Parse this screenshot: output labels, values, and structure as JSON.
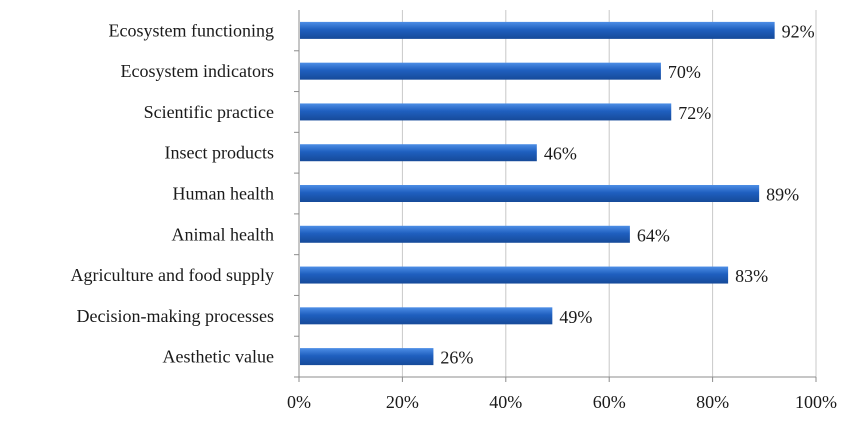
{
  "chart_data": {
    "type": "bar",
    "orientation": "horizontal",
    "categories": [
      "Ecosystem functioning",
      "Ecosystem indicators",
      "Scientific practice",
      "Insect products",
      "Human health",
      "Animal health",
      "Agriculture and food supply",
      "Decision-making processes",
      "Aesthetic value"
    ],
    "values": [
      92,
      70,
      72,
      46,
      89,
      64,
      83,
      49,
      26
    ],
    "value_labels": [
      "92%",
      "70%",
      "72%",
      "46%",
      "89%",
      "64%",
      "83%",
      "49%",
      "26%"
    ],
    "xlim": [
      0,
      100
    ],
    "x_ticks": [
      0,
      20,
      40,
      60,
      80,
      100
    ],
    "x_tick_labels": [
      "0%",
      "20%",
      "40%",
      "60%",
      "80%",
      "100%"
    ],
    "grid": "vertical",
    "legend": "none",
    "bar_color": "#1f5fbf",
    "grid_color": "#c8c8c8"
  }
}
